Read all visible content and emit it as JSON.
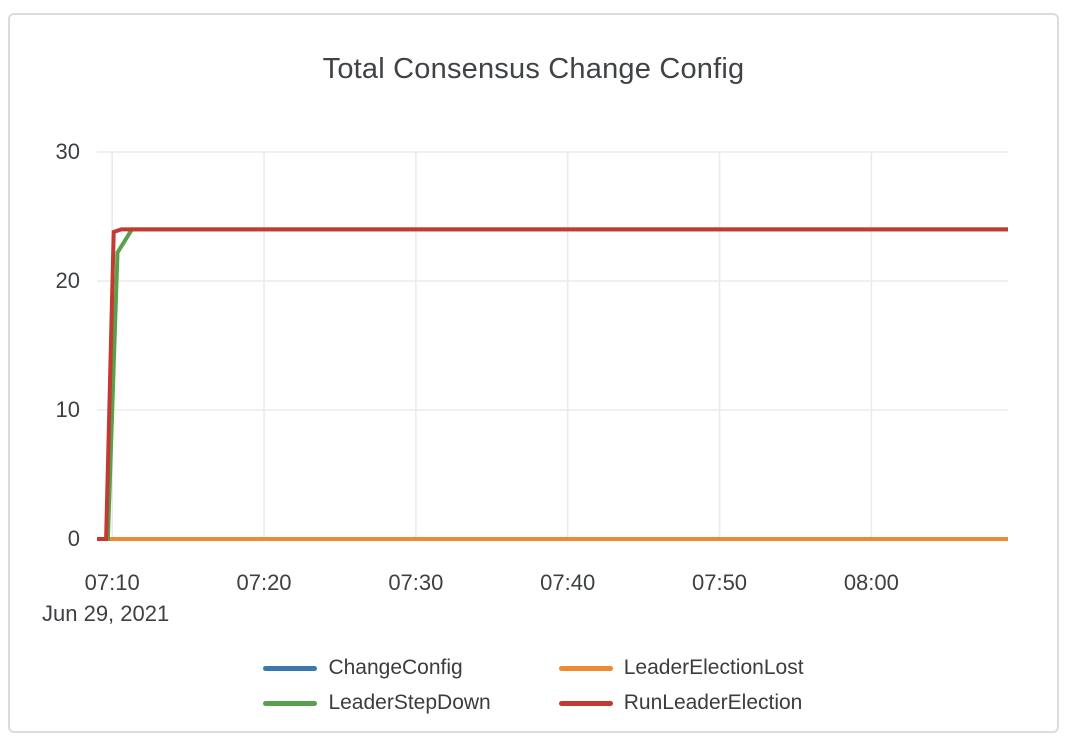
{
  "chart_data": {
    "type": "line",
    "title": "Total Consensus Change Config",
    "x_axis": {
      "date_label": "Jun 29, 2021",
      "tick_labels": [
        "07:10",
        "07:20",
        "07:30",
        "07:40",
        "07:50",
        "08:00"
      ],
      "tick_minutes": [
        1,
        11,
        21,
        31,
        41,
        51
      ],
      "range_minutes": [
        0,
        60
      ]
    },
    "y_axis": {
      "tick_labels_top_down": [
        "30",
        "20",
        "10",
        "0"
      ],
      "tick_values_top_down": [
        30,
        20,
        10,
        0
      ],
      "range": [
        0,
        30
      ]
    },
    "grid": true,
    "legend_position": "bottom-center",
    "series": [
      {
        "name": "ChangeConfig",
        "color": "#3a78ae",
        "points": [
          [
            0,
            0
          ],
          [
            60,
            0
          ]
        ]
      },
      {
        "name": "LeaderElectionLost",
        "color": "#ee8a33",
        "points": [
          [
            0,
            0
          ],
          [
            60,
            0
          ]
        ]
      },
      {
        "name": "LeaderStepDown",
        "color": "#57a14a",
        "points": [
          [
            0,
            0
          ],
          [
            0.72,
            0
          ],
          [
            1.35,
            22.2
          ],
          [
            2.3,
            24
          ],
          [
            60,
            24
          ]
        ]
      },
      {
        "name": "RunLeaderElection",
        "color": "#c23a31",
        "points": [
          [
            0,
            0
          ],
          [
            0.6,
            0
          ],
          [
            1.1,
            23.8
          ],
          [
            1.6,
            24
          ],
          [
            60,
            24
          ]
        ]
      }
    ]
  }
}
